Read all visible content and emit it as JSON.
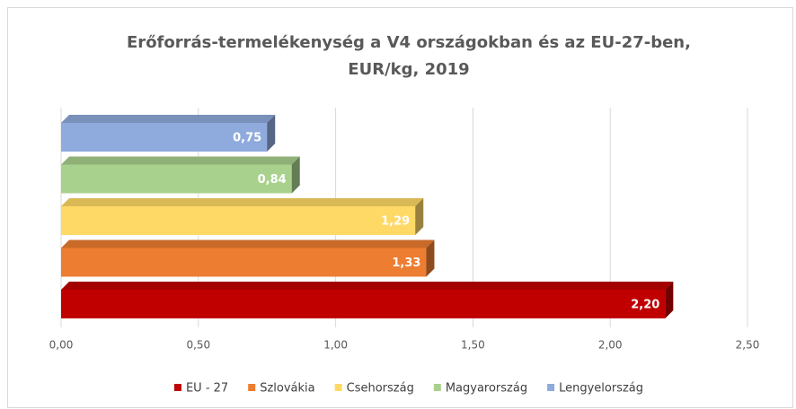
{
  "chart_data": {
    "type": "bar3d_horizontal",
    "title": [
      "Erőforrás-termelékenység a V4 országokban és az EU-27-ben,",
      "EUR/kg, 2019"
    ],
    "series": [
      {
        "name": "EU - 27",
        "color": "#c00000",
        "values": [
          2.2
        ],
        "value_labels": [
          "2,20"
        ]
      },
      {
        "name": "Szlovákia",
        "color": "#ed7d31",
        "values": [
          1.33
        ],
        "value_labels": [
          "1,33"
        ]
      },
      {
        "name": "Csehország",
        "color": "#ffd966",
        "values": [
          1.29
        ],
        "value_labels": [
          "1,29"
        ]
      },
      {
        "name": "Magyarország",
        "color": "#a9d18e",
        "values": [
          0.84
        ],
        "value_labels": [
          "0,84"
        ]
      },
      {
        "name": "Lengyelország",
        "color": "#8faadc",
        "values": [
          0.75
        ],
        "value_labels": [
          "0,75"
        ]
      }
    ],
    "xlim": [
      0,
      2.5
    ],
    "xticks": [
      {
        "value": 0,
        "label": "0,00"
      },
      {
        "value": 0.5,
        "label": "0,50"
      },
      {
        "value": 1,
        "label": "1,00"
      },
      {
        "value": 1.5,
        "label": "1,50"
      },
      {
        "value": 2,
        "label": "2,00"
      },
      {
        "value": 2.5,
        "label": "2,50"
      }
    ],
    "grid": true,
    "legend": "bottom"
  }
}
